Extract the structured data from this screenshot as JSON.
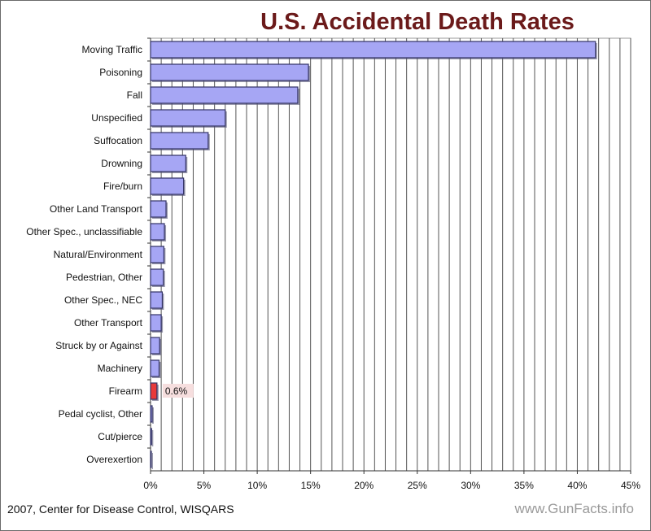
{
  "chart_data": {
    "type": "bar",
    "orientation": "horizontal",
    "title": "U.S. Accidental Death Rates",
    "categories": [
      "Moving Traffic",
      "Poisoning",
      "Fall",
      "Unspecified",
      "Suffocation",
      "Drowning",
      "Fire/burn",
      "Other Land Transport",
      "Other Spec., unclassifiable",
      "Natural/Environment",
      "Pedestrian, Other",
      "Other Spec., NEC",
      "Other Transport",
      "Struck by or Against",
      "Machinery",
      "Firearm",
      "Pedal cyclist, Other",
      "Cut/pierce",
      "Overexertion"
    ],
    "values": [
      41.7,
      14.8,
      13.8,
      7.0,
      5.4,
      3.3,
      3.1,
      1.45,
      1.3,
      1.25,
      1.2,
      1.1,
      1.0,
      0.85,
      0.8,
      0.6,
      0.15,
      0.1,
      0.05
    ],
    "highlight": {
      "category": "Firearm",
      "label": "0.6%",
      "color": "#e83a3a"
    },
    "bar_color": "#a6a6f4",
    "title_color": "#6b1a1a",
    "xlim": [
      0,
      45
    ],
    "xticks": [
      "0%",
      "5%",
      "10%",
      "15%",
      "20%",
      "25%",
      "30%",
      "35%",
      "40%",
      "45%"
    ],
    "grid": "vertical lines every 1%",
    "source": "2007, Center for Disease Control, WISQARS",
    "watermark": "www.GunFacts.info"
  }
}
